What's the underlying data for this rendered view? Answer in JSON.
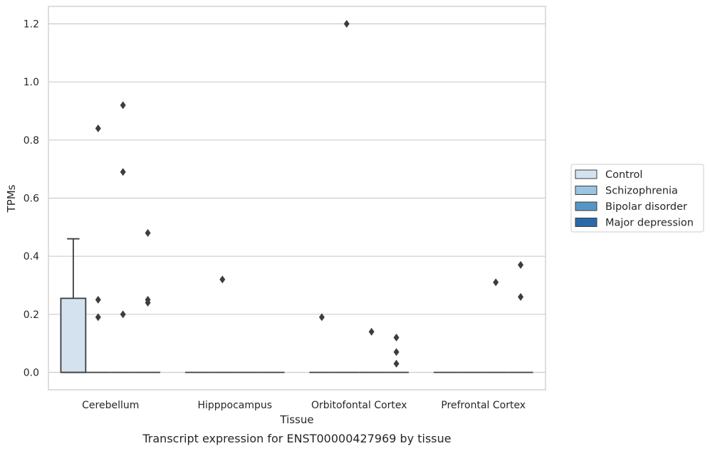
{
  "chart_data": {
    "type": "box",
    "caption": "Transcript expression for ENST00000427969 by tissue",
    "xlabel": "Tissue",
    "ylabel": "TPMs",
    "ylim": [
      -0.06,
      1.26
    ],
    "yticks": [
      0.0,
      0.2,
      0.4,
      0.6,
      0.8,
      1.0,
      1.2
    ],
    "ytick_labels": [
      "0.0",
      "0.2",
      "0.4",
      "0.6",
      "0.8",
      "1.0",
      "1.2"
    ],
    "categories": [
      "Cerebellum",
      "Hipppocampus",
      "Orbitofontal Cortex",
      "Prefrontal Cortex"
    ],
    "grid": true,
    "legend_position": "right",
    "series": [
      {
        "name": "Control",
        "color": "#d4e2f0",
        "boxes": [
          {
            "q1": 0.0,
            "median": 0.0,
            "q3": 0.255,
            "whisker_low": 0.0,
            "whisker_high": 0.46,
            "outliers": []
          },
          {
            "q1": 0.0,
            "median": 0.0,
            "q3": 0.0,
            "whisker_low": 0.0,
            "whisker_high": 0.0,
            "outliers": []
          },
          {
            "q1": 0.0,
            "median": 0.0,
            "q3": 0.0,
            "whisker_low": 0.0,
            "whisker_high": 0.0,
            "outliers": [
              0.19
            ]
          },
          {
            "q1": 0.0,
            "median": 0.0,
            "q3": 0.0,
            "whisker_low": 0.0,
            "whisker_high": 0.0,
            "outliers": []
          }
        ]
      },
      {
        "name": "Schizophrenia",
        "color": "#9ac4df",
        "boxes": [
          {
            "q1": 0.0,
            "median": 0.0,
            "q3": 0.0,
            "whisker_low": 0.0,
            "whisker_high": 0.0,
            "outliers": [
              0.84,
              0.25,
              0.19
            ]
          },
          {
            "q1": 0.0,
            "median": 0.0,
            "q3": 0.0,
            "whisker_low": 0.0,
            "whisker_high": 0.0,
            "outliers": [
              0.32
            ]
          },
          {
            "q1": 0.0,
            "median": 0.0,
            "q3": 0.0,
            "whisker_low": 0.0,
            "whisker_high": 0.0,
            "outliers": [
              1.2
            ]
          },
          {
            "q1": 0.0,
            "median": 0.0,
            "q3": 0.0,
            "whisker_low": 0.0,
            "whisker_high": 0.0,
            "outliers": []
          }
        ]
      },
      {
        "name": "Bipolar disorder",
        "color": "#5696c6",
        "boxes": [
          {
            "q1": 0.0,
            "median": 0.0,
            "q3": 0.0,
            "whisker_low": 0.0,
            "whisker_high": 0.0,
            "outliers": [
              0.92,
              0.69,
              0.2
            ]
          },
          {
            "q1": 0.0,
            "median": 0.0,
            "q3": 0.0,
            "whisker_low": 0.0,
            "whisker_high": 0.0,
            "outliers": []
          },
          {
            "q1": 0.0,
            "median": 0.0,
            "q3": 0.0,
            "whisker_low": 0.0,
            "whisker_high": 0.0,
            "outliers": [
              0.14
            ]
          },
          {
            "q1": 0.0,
            "median": 0.0,
            "q3": 0.0,
            "whisker_low": 0.0,
            "whisker_high": 0.0,
            "outliers": [
              0.31
            ]
          }
        ]
      },
      {
        "name": "Major depression",
        "color": "#2b6aa8",
        "boxes": [
          {
            "q1": 0.0,
            "median": 0.0,
            "q3": 0.0,
            "whisker_low": 0.0,
            "whisker_high": 0.0,
            "outliers": [
              0.48,
              0.25,
              0.24
            ]
          },
          {
            "q1": 0.0,
            "median": 0.0,
            "q3": 0.0,
            "whisker_low": 0.0,
            "whisker_high": 0.0,
            "outliers": []
          },
          {
            "q1": 0.0,
            "median": 0.0,
            "q3": 0.0,
            "whisker_low": 0.0,
            "whisker_high": 0.0,
            "outliers": [
              0.03,
              0.12,
              0.07
            ]
          },
          {
            "q1": 0.0,
            "median": 0.0,
            "q3": 0.0,
            "whisker_low": 0.0,
            "whisker_high": 0.0,
            "outliers": [
              0.37,
              0.26
            ]
          }
        ]
      }
    ]
  }
}
